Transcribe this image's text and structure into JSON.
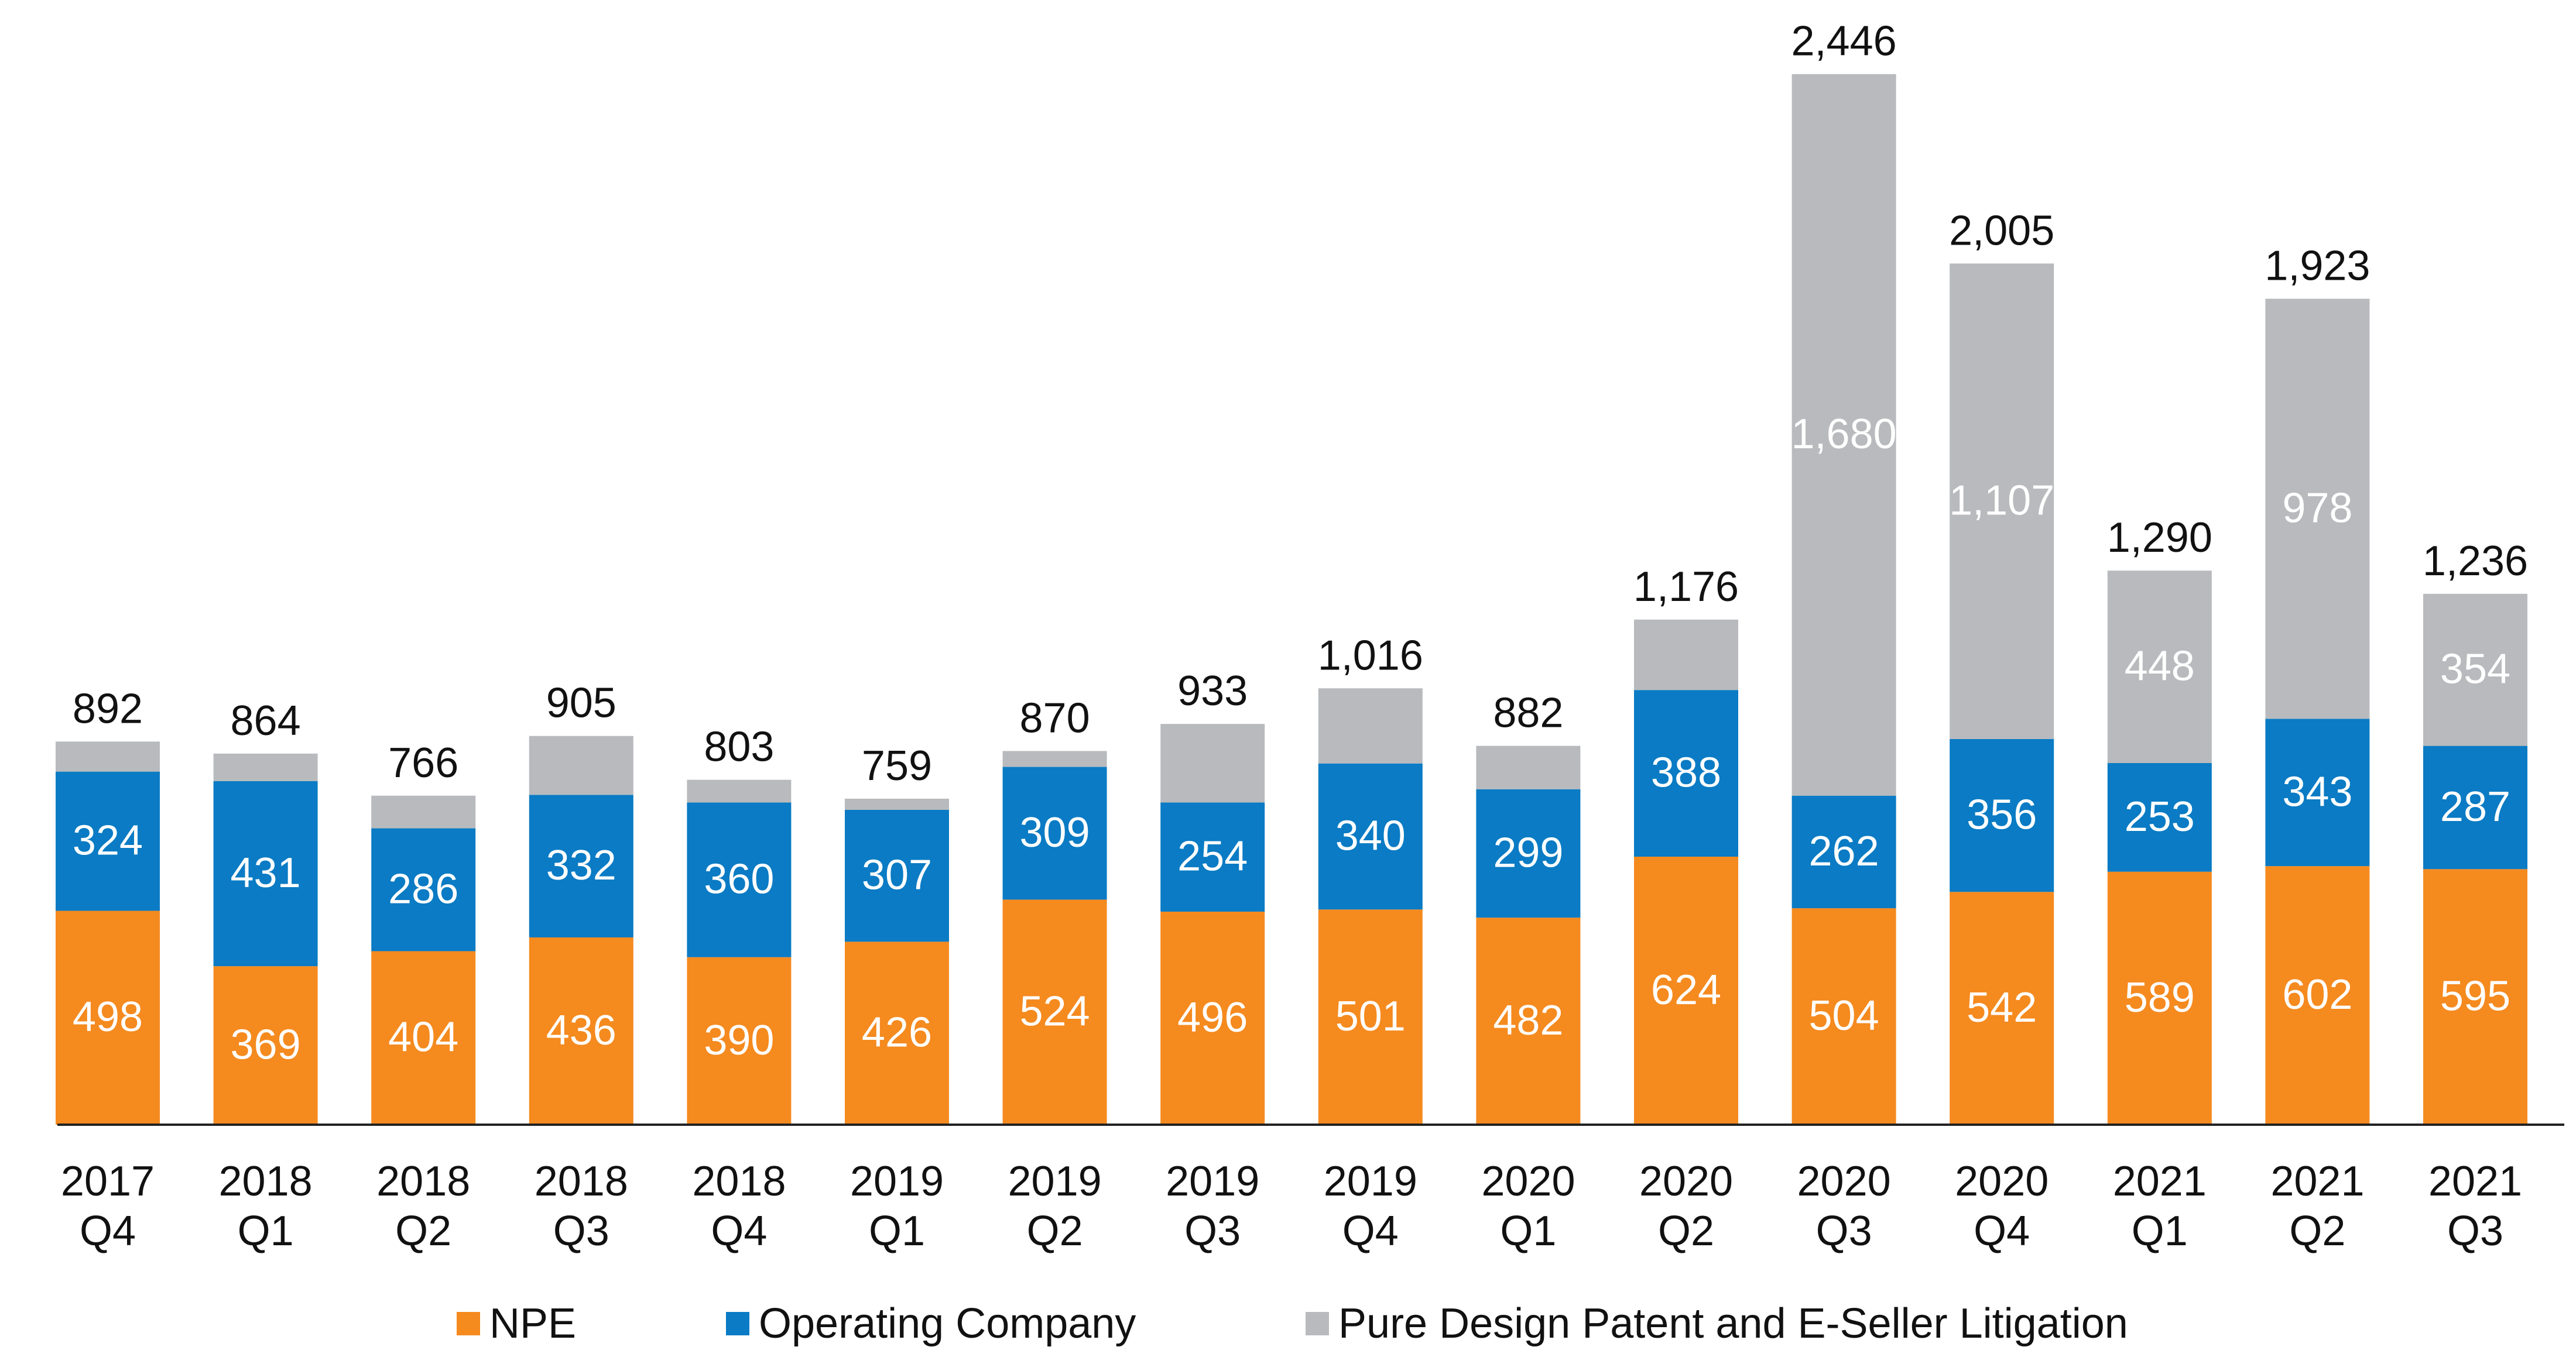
{
  "chart_data": {
    "type": "bar",
    "stacked": true,
    "title": "",
    "xlabel": "",
    "ylabel": "",
    "ylim": [
      0,
      2600
    ],
    "grid": false,
    "legend_position": "bottom",
    "categories": [
      [
        "2017",
        "Q4"
      ],
      [
        "2018",
        "Q1"
      ],
      [
        "2018",
        "Q2"
      ],
      [
        "2018",
        "Q3"
      ],
      [
        "2018",
        "Q4"
      ],
      [
        "2019",
        "Q1"
      ],
      [
        "2019",
        "Q2"
      ],
      [
        "2019",
        "Q3"
      ],
      [
        "2019",
        "Q4"
      ],
      [
        "2020",
        "Q1"
      ],
      [
        "2020",
        "Q2"
      ],
      [
        "2020",
        "Q3"
      ],
      [
        "2020",
        "Q4"
      ],
      [
        "2021",
        "Q1"
      ],
      [
        "2021",
        "Q2"
      ],
      [
        "2021",
        "Q3"
      ]
    ],
    "series": [
      {
        "name": "NPE",
        "color": "#F58A1F",
        "values": [
          498,
          369,
          404,
          436,
          390,
          426,
          524,
          496,
          501,
          482,
          624,
          504,
          542,
          589,
          602,
          595
        ],
        "labels": [
          "498",
          "369",
          "404",
          "436",
          "390",
          "426",
          "524",
          "496",
          "501",
          "482",
          "624",
          "504",
          "542",
          "589",
          "602",
          "595"
        ]
      },
      {
        "name": "Operating Company",
        "color": "#0A7BC4",
        "values": [
          324,
          431,
          286,
          332,
          360,
          307,
          309,
          254,
          340,
          299,
          388,
          262,
          356,
          253,
          343,
          287
        ],
        "labels": [
          "324",
          "431",
          "286",
          "332",
          "360",
          "307",
          "309",
          "254",
          "340",
          "299",
          "388",
          "262",
          "356",
          "253",
          "343",
          "287"
        ]
      },
      {
        "name": "Pure Design Patent and E-Seller Litigation",
        "color": "#B8BABD",
        "values": [
          70,
          64,
          76,
          137,
          53,
          26,
          37,
          183,
          175,
          101,
          164,
          1680,
          1107,
          448,
          978,
          354
        ],
        "labels": [
          "",
          "",
          "",
          "",
          "",
          "",
          "",
          "",
          "",
          "",
          "",
          "1,680",
          "1,107",
          "448",
          "978",
          "354"
        ]
      }
    ],
    "totals": [
      "892",
      "864",
      "766",
      "905",
      "803",
      "759",
      "870",
      "933",
      "1,016",
      "882",
      "1,176",
      "2,446",
      "2,005",
      "1,290",
      "1,923",
      "1,236"
    ]
  }
}
